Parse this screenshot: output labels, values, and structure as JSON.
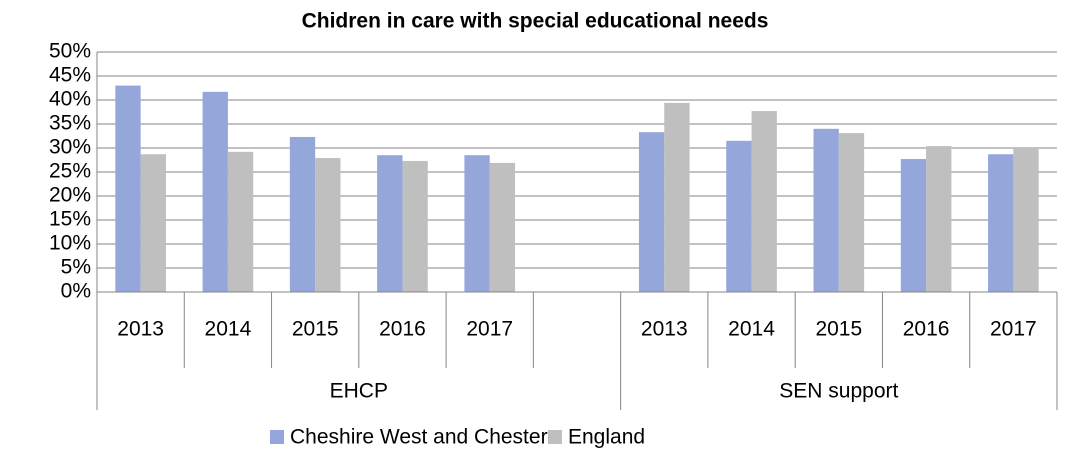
{
  "chart_data": {
    "type": "bar",
    "title": "Chidren in care with special educational needs",
    "categories": [
      "2013",
      "2014",
      "2015",
      "2016",
      "2017",
      null,
      "2013",
      "2014",
      "2015",
      "2016",
      "2017"
    ],
    "groups": [
      "EHCP",
      "SEN support"
    ],
    "series": [
      {
        "name": "Cheshire West and Chester",
        "color": "#95a6db",
        "values": [
          43,
          41.7,
          32.3,
          28.5,
          28.5,
          null,
          33.3,
          31.5,
          34,
          27.7,
          28.7
        ]
      },
      {
        "name": "England",
        "color": "#bfbfbf",
        "values": [
          28.7,
          29.2,
          27.9,
          27.3,
          26.9,
          null,
          39.4,
          37.7,
          33.1,
          30.4,
          29.8
        ]
      }
    ],
    "ylim": [
      0,
      50
    ],
    "yticks": [
      {
        "value": 0,
        "label": "0%"
      },
      {
        "value": 5,
        "label": "5%"
      },
      {
        "value": 10,
        "label": "10%"
      },
      {
        "value": 15,
        "label": "15%"
      },
      {
        "value": 20,
        "label": "20%"
      },
      {
        "value": 25,
        "label": "25%"
      },
      {
        "value": 30,
        "label": "30%"
      },
      {
        "value": 35,
        "label": "35%"
      },
      {
        "value": 40,
        "label": "40%"
      },
      {
        "value": 45,
        "label": "45%"
      },
      {
        "value": 50,
        "label": "50%"
      }
    ],
    "grid": true,
    "legend": "bottom"
  }
}
